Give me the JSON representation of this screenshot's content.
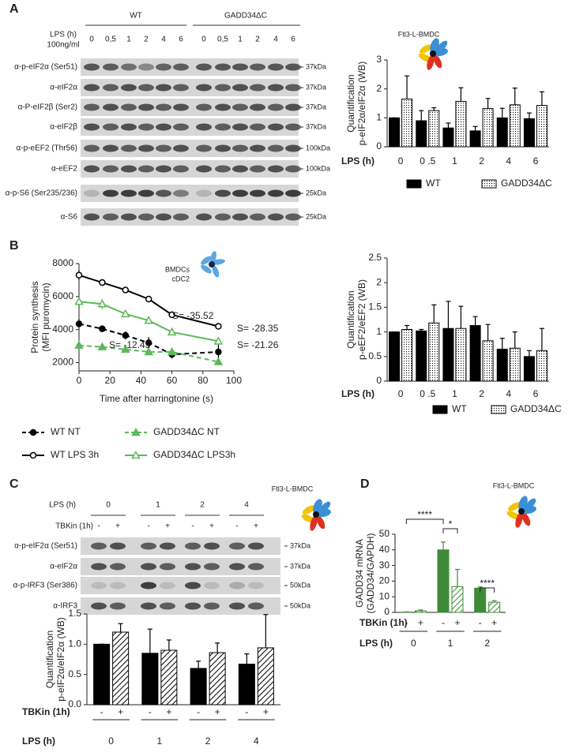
{
  "panels": [
    "A",
    "B",
    "C",
    "D"
  ],
  "blot_a": {
    "groups": [
      "WT",
      "GADD34ΔC"
    ],
    "lps_label": "LPS (h)",
    "dose": "100ng/ml",
    "lanes": [
      "0",
      "0,5",
      "1",
      "2",
      "4",
      "6"
    ],
    "rows": [
      {
        "label": "α-p-eIF2α (Ser51)",
        "size": "37kDa"
      },
      {
        "label": "α-eIF2α",
        "size": "37kDa"
      },
      {
        "label": "α-P-eIF2β (Ser2)",
        "size": "37kDa"
      },
      {
        "label": "α-eIF2β",
        "size": "37kDa"
      },
      {
        "label": "α-p-eEF2 (Thr56)",
        "size": "100kDa"
      },
      {
        "label": "α-eEF2",
        "size": "100kDa"
      },
      {
        "label": "α-p-S6 (Ser235/236)",
        "size": "25kDa"
      },
      {
        "label": "α-S6",
        "size": "25kDa"
      }
    ]
  },
  "blot_c": {
    "annotation": "Ftl3-L-BMDC",
    "lps_label": "LPS (h)",
    "lps": [
      "0",
      "1",
      "2",
      "4"
    ],
    "tbkin_label": "TBKin (1h)",
    "signs": [
      "-",
      "+"
    ],
    "rows": [
      {
        "label": "α-p-eIF2α (Ser51)",
        "size": "37kDa"
      },
      {
        "label": "α-eIF2α",
        "size": "37kDa"
      },
      {
        "label": "α-p-IRF3 (Ser386)",
        "size": "50kDa"
      },
      {
        "label": "α-IRF3",
        "size": "50kDa"
      }
    ]
  },
  "chart_data": [
    {
      "type": "bar",
      "annotation": "Ftl3-L-BMDC",
      "ylabel": [
        "Quantification",
        "p-eIF2α/eIF2α (WB)"
      ],
      "xlabel": "LPS (h)",
      "categories": [
        "0",
        "0 .5",
        "1",
        "2",
        "4",
        "6"
      ],
      "ylim": [
        0,
        3
      ],
      "yticks": [
        0,
        1,
        2,
        3
      ],
      "legend": "bottom",
      "series": [
        {
          "name": "WT",
          "color": "#000000",
          "fill": "solid",
          "values": [
            1,
            0.9,
            0.65,
            0.55,
            1,
            0.97
          ],
          "errors": [
            0,
            0.35,
            0.17,
            0.15,
            0.33,
            0.2
          ]
        },
        {
          "name": "GADD34ΔC",
          "color": "#000000",
          "fill": "dots",
          "values": [
            1.65,
            1.25,
            1.57,
            1.32,
            1.45,
            1.43
          ],
          "errors": [
            0.8,
            0.1,
            0.47,
            0.35,
            0.58,
            0.47
          ]
        }
      ]
    },
    {
      "type": "line",
      "annotation": [
        "BMDCs",
        "cDC2"
      ],
      "ylabel": [
        "Protein synthesis",
        "(MFI puromycin)"
      ],
      "xlabel": "Time after harringtonine (s)",
      "x": [
        0,
        15,
        30,
        45,
        60,
        90
      ],
      "xlim": [
        0,
        100
      ],
      "xticks": [
        0,
        20,
        40,
        60,
        80,
        100
      ],
      "ylim": [
        1500,
        8000
      ],
      "yticks": [
        2000,
        4000,
        6000,
        8000
      ],
      "series": [
        {
          "name": "WT NT",
          "color": "#000000",
          "line": "dashed",
          "marker": "filled-circle",
          "values": [
            4350,
            4050,
            3650,
            3200,
            2500,
            2650
          ],
          "errors": [
            300,
            200,
            250,
            350,
            250,
            450
          ],
          "slope": "S= -21.26"
        },
        {
          "name": "GADD34ΔC NT",
          "color": "#5cb85c",
          "line": "dashed",
          "marker": "filled-triangle",
          "values": [
            3050,
            2950,
            2800,
            2650,
            2650,
            2050
          ],
          "errors": [
            100,
            80,
            80,
            80,
            80,
            150
          ],
          "slope": "S= -12.45"
        },
        {
          "name": "WT LPS 3h",
          "color": "#000000",
          "line": "solid",
          "marker": "open-circle",
          "values": [
            7300,
            6850,
            6400,
            5850,
            4900,
            4200
          ],
          "errors": [
            300,
            100,
            100,
            100,
            100,
            150
          ],
          "slope": "S= -35.52"
        },
        {
          "name": "GADD34ΔC  LPS3h",
          "color": "#5cb85c",
          "line": "solid",
          "marker": "open-triangle",
          "values": [
            5700,
            5550,
            4950,
            4550,
            3850,
            3300
          ],
          "errors": [
            200,
            300,
            150,
            200,
            200,
            150
          ],
          "slope": "S= -28.35"
        }
      ]
    },
    {
      "type": "bar",
      "ylabel": [
        "Quantification",
        "p-eEF2/eEF2 (WB)"
      ],
      "xlabel": "LPS (h)",
      "categories": [
        "0",
        "0 .5",
        "1",
        "2",
        "4",
        "6"
      ],
      "ylim": [
        0,
        2.5
      ],
      "yticks": [
        0,
        0.5,
        1,
        1.5,
        2,
        2.5
      ],
      "legend": "bottom",
      "series": [
        {
          "name": "WT",
          "color": "#000000",
          "fill": "solid",
          "values": [
            1,
            1.02,
            1.07,
            1.13,
            0.65,
            0.5
          ],
          "errors": [
            0,
            0.03,
            0.55,
            0.18,
            0.22,
            0.12
          ]
        },
        {
          "name": "GADD34ΔC",
          "color": "#000000",
          "fill": "dots",
          "values": [
            1.05,
            1.18,
            1.07,
            0.82,
            0.67,
            0.62
          ],
          "errors": [
            0.08,
            0.37,
            0.45,
            0.33,
            0.33,
            0.45
          ]
        }
      ]
    },
    {
      "type": "bar",
      "ylabel": [
        "Quantification",
        "p-eIF2α/eIF2α (WB)"
      ],
      "xlabel": "LPS (h)",
      "group_label": "TBKin  (1h)",
      "categories": [
        "0",
        "1",
        "2",
        "4"
      ],
      "ylim": [
        0,
        1.5
      ],
      "yticks": [
        {
          "value": 0,
          "label": "0.0"
        },
        0.5,
        {
          "value": 1,
          "label": "1.0"
        },
        1.5
      ],
      "series": [
        {
          "name": "-",
          "color": "#000000",
          "fill": "solid",
          "values": [
            1,
            0.85,
            0.6,
            0.67
          ],
          "errors": [
            0,
            0.4,
            0.12,
            0.17
          ]
        },
        {
          "name": "+",
          "color": "#000000",
          "fill": "hatch",
          "values": [
            1.2,
            0.9,
            0.86,
            0.94
          ],
          "errors": [
            0.14,
            0.17,
            0.16,
            0.55
          ]
        }
      ]
    },
    {
      "type": "bar",
      "annotation": "Ftl3-L-BMDC",
      "ylabel": [
        "GADD34 mRNA",
        "(GADD34/GAPDH)"
      ],
      "xlabel": "LPS (h)",
      "group_label": "TBKin (1h)",
      "categories": [
        "0",
        "1",
        "2"
      ],
      "ylim": [
        0,
        50
      ],
      "yticks": [
        0,
        10,
        20,
        30,
        40,
        50
      ],
      "significance": [
        "****",
        "*",
        "****"
      ],
      "series": [
        {
          "name": "-",
          "color": "#3d8b37",
          "fill": "solid",
          "values": [
            0.2,
            40,
            15.5
          ],
          "errors": [
            0.1,
            5,
            0.8
          ]
        },
        {
          "name": "+",
          "color": "#3d8b37",
          "fill": "hatch",
          "values": [
            1,
            16.5,
            6.5
          ],
          "errors": [
            0.5,
            11,
            1
          ]
        }
      ]
    }
  ]
}
